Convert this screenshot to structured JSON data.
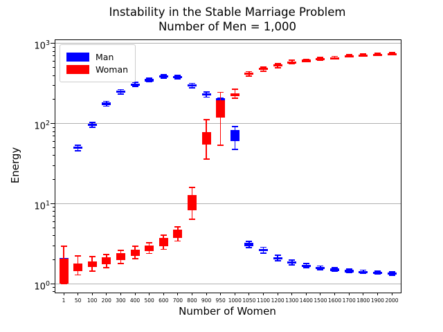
{
  "title": {
    "line1": "Instability in the Stable Marriage Problem",
    "line2": "Number of Men = 1,000"
  },
  "legend": {
    "items": [
      {
        "label": "Man",
        "color": "#0000ff"
      },
      {
        "label": "Woman",
        "color": "#ff0000"
      }
    ]
  },
  "chart_data": {
    "type": "boxplot",
    "title": "Instability in the Stable Marriage Problem",
    "subtitle": "Number of Men = 1,000",
    "xlabel": "Number of Women",
    "ylabel": "Energy",
    "y_scale": "log",
    "ylim": [
      0.78,
      1104
    ],
    "y_major_ticks": [
      1,
      10,
      100,
      1000
    ],
    "grid": true,
    "grid_color": "#b0b0b0",
    "legend_position": "upper left",
    "categories": [
      1,
      50,
      100,
      200,
      300,
      400,
      500,
      600,
      700,
      800,
      900,
      950,
      1000,
      1050,
      1100,
      1200,
      1300,
      1400,
      1500,
      1600,
      1700,
      1800,
      1900,
      2000
    ],
    "series": [
      {
        "name": "Man",
        "color": "#0000ff",
        "boxes": [
          [
            1.0,
            2.12
          ],
          [
            49,
            52
          ],
          [
            94,
            100
          ],
          [
            172,
            184
          ],
          [
            243,
            258
          ],
          [
            302,
            318
          ],
          [
            342,
            360
          ],
          [
            382,
            400
          ],
          [
            375,
            392
          ],
          [
            291,
            308
          ],
          [
            224,
            238
          ],
          [
            181,
            207
          ],
          [
            61,
            83
          ],
          [
            2.98,
            3.25
          ],
          [
            2.55,
            2.75
          ],
          [
            2.04,
            2.16
          ],
          [
            1.8,
            1.9
          ],
          [
            1.65,
            1.74
          ],
          [
            1.55,
            1.62
          ],
          [
            1.48,
            1.55
          ],
          [
            1.43,
            1.49
          ],
          [
            1.39,
            1.45
          ],
          [
            1.36,
            1.41
          ],
          [
            1.33,
            1.38
          ]
        ],
        "whiskers": [
          [
            1.0,
            2.95
          ],
          [
            46,
            54
          ],
          [
            90,
            104
          ],
          [
            166,
            190
          ],
          [
            235,
            266
          ],
          [
            292,
            328
          ],
          [
            332,
            370
          ],
          [
            370,
            410
          ],
          [
            362,
            403
          ],
          [
            281,
            320
          ],
          [
            214,
            248
          ],
          [
            181,
            207
          ],
          [
            48,
            92
          ],
          [
            2.85,
            3.42
          ],
          [
            2.44,
            2.87
          ],
          [
            1.95,
            2.28
          ],
          [
            1.74,
            1.99
          ],
          [
            1.6,
            1.81
          ],
          [
            1.51,
            1.68
          ],
          [
            1.44,
            1.6
          ],
          [
            1.39,
            1.54
          ],
          [
            1.35,
            1.49
          ],
          [
            1.32,
            1.45
          ],
          [
            1.29,
            1.42
          ]
        ]
      },
      {
        "name": "Woman",
        "color": "#ff0000",
        "boxes": [
          [
            1.0,
            2.05
          ],
          [
            1.45,
            1.78
          ],
          [
            1.62,
            1.9
          ],
          [
            1.75,
            2.14
          ],
          [
            1.97,
            2.4
          ],
          [
            2.24,
            2.7
          ],
          [
            2.55,
            3.0
          ],
          [
            2.95,
            3.75
          ],
          [
            3.74,
            4.76
          ],
          [
            8.3,
            12.8
          ],
          [
            55,
            78
          ],
          [
            119,
            196
          ],
          [
            222,
            240
          ],
          [
            408,
            432
          ],
          [
            468,
            496
          ],
          [
            518,
            548
          ],
          [
            578,
            602
          ],
          [
            603,
            627
          ],
          [
            638,
            662
          ],
          [
            653,
            677
          ],
          [
            693,
            717
          ],
          [
            708,
            732
          ],
          [
            723,
            747
          ],
          [
            738,
            762
          ]
        ],
        "whiskers": [
          [
            1.0,
            2.95
          ],
          [
            1.3,
            2.25
          ],
          [
            1.45,
            2.18
          ],
          [
            1.6,
            2.33
          ],
          [
            1.8,
            2.62
          ],
          [
            2.08,
            2.95
          ],
          [
            2.4,
            3.26
          ],
          [
            2.71,
            4.06
          ],
          [
            3.44,
            5.16
          ],
          [
            6.4,
            16.0
          ],
          [
            36,
            112
          ],
          [
            54,
            246
          ],
          [
            208,
            270
          ],
          [
            393,
            447
          ],
          [
            452,
            512
          ],
          [
            502,
            563
          ],
          [
            562,
            617
          ],
          [
            590,
            641
          ],
          [
            625,
            676
          ],
          [
            640,
            691
          ],
          [
            680,
            730
          ],
          [
            696,
            744
          ],
          [
            711,
            758
          ],
          [
            726,
            773
          ]
        ]
      }
    ]
  }
}
